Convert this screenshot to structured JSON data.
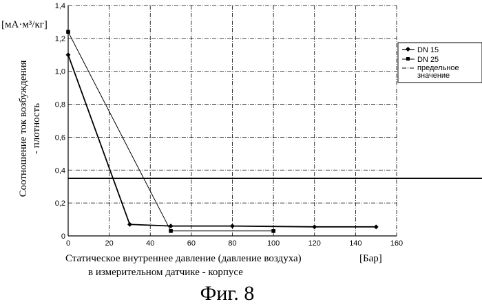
{
  "chart_data": {
    "type": "line",
    "caption": "Фиг. 8",
    "y_unit": "[мА·м³/кг]",
    "ylabel_line1": "Соотношение ток возбуждения",
    "ylabel_line2": "- плотность",
    "xlabel_line1": "Статическое внутреннее давление (давление воздуха)",
    "xlabel_line2": "в измерительном датчике - корпусе",
    "x_unit": "[Бар]",
    "xlim": [
      0,
      160
    ],
    "ylim": [
      0,
      1.4
    ],
    "x_ticks": [
      "0",
      "20",
      "40",
      "60",
      "80",
      "100",
      "120",
      "140",
      "160"
    ],
    "y_ticks": [
      "0",
      "0,2",
      "0,4",
      "0,6",
      "0,8",
      "1,0",
      "1,2",
      "1,4"
    ],
    "grid": true,
    "legend_position": "right",
    "series": [
      {
        "name": "DN 15",
        "marker": "diamond",
        "points": [
          [
            0,
            1.1
          ],
          [
            30,
            0.07
          ],
          [
            50,
            0.06
          ],
          [
            80,
            0.06
          ],
          [
            120,
            0.055
          ],
          [
            150,
            0.055
          ]
        ]
      },
      {
        "name": "DN 25",
        "marker": "square",
        "points": [
          [
            0,
            1.24
          ],
          [
            50,
            0.03
          ],
          [
            100,
            0.03
          ]
        ]
      }
    ],
    "reference_line": {
      "name": "предельное значение",
      "value": 0.35
    }
  }
}
